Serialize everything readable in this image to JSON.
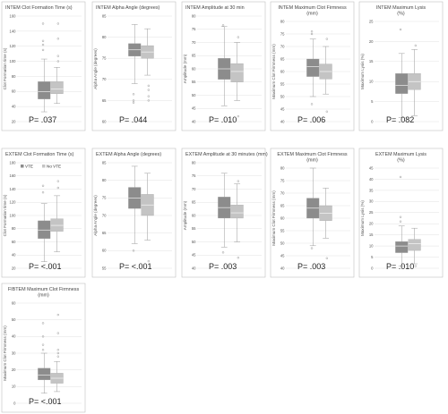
{
  "chart_data": [
    {
      "type": "box",
      "title": "INTEM Clot Formation Time (s)",
      "ylabel": "Clot Formation time (s)",
      "ylim": [
        20,
        160
      ],
      "yticks": [
        20,
        40,
        60,
        80,
        100,
        120,
        140,
        160
      ],
      "p_label": "P= .037",
      "series": [
        {
          "name": "VTE",
          "whisker_low": 33,
          "q1": 50,
          "median": 60,
          "q3": 73,
          "whisker_high": 103,
          "outliers": [
            115,
            122,
            127,
            150
          ]
        },
        {
          "name": "No VTE",
          "whisker_low": 44,
          "q1": 57,
          "median": 63,
          "q3": 73,
          "whisker_high": 92,
          "outliers": [
            100,
            107,
            130,
            150
          ]
        }
      ]
    },
    {
      "type": "box",
      "title": "INTEM Alpha Angle (degrees)",
      "ylabel": "Alpha Angle (degrees)",
      "ylim": [
        60,
        85
      ],
      "yticks": [
        60,
        65,
        70,
        75,
        80,
        85
      ],
      "p_label": "P= .044",
      "series": [
        {
          "name": "VTE",
          "whisker_low": 69,
          "q1": 75.5,
          "median": 77,
          "q3": 78.5,
          "whisker_high": 83,
          "outliers": [
            64.5,
            65,
            66.5
          ]
        },
        {
          "name": "No VTE",
          "whisker_low": 71,
          "q1": 75,
          "median": 76.5,
          "q3": 78,
          "whisker_high": 82,
          "outliers": [
            65,
            66,
            67.5,
            68.5
          ]
        }
      ]
    },
    {
      "type": "box",
      "title": "INTEM Amplitude at 30 min",
      "ylabel": "Amplitude (mm)",
      "ylim": [
        40,
        80
      ],
      "yticks": [
        40,
        45,
        50,
        55,
        60,
        65,
        70,
        75,
        80
      ],
      "p_label": "P= .010",
      "series": [
        {
          "name": "VTE",
          "whisker_low": 46,
          "q1": 56,
          "median": 60,
          "q3": 64,
          "whisker_high": 76,
          "outliers": [
            76.5
          ]
        },
        {
          "name": "No VTE",
          "whisker_low": 48,
          "q1": 55,
          "median": 59,
          "q3": 62,
          "whisker_high": 70,
          "outliers": [
            72,
            42
          ]
        }
      ]
    },
    {
      "type": "box",
      "title": "INTEM Maximum Clot Firmness (mm)",
      "ylabel": "Maximum Clot Firmness (mm)",
      "ylim": [
        40,
        80
      ],
      "yticks": [
        40,
        45,
        50,
        55,
        60,
        65,
        70,
        75,
        80
      ],
      "p_label": "P= .006",
      "series": [
        {
          "name": "VTE",
          "whisker_low": 50,
          "q1": 58,
          "median": 62,
          "q3": 65,
          "whisker_high": 73,
          "outliers": [
            47,
            75,
            76
          ]
        },
        {
          "name": "No VTE",
          "whisker_low": 51,
          "q1": 57,
          "median": 60,
          "q3": 63,
          "whisker_high": 70,
          "outliers": [
            73,
            44
          ]
        }
      ]
    },
    {
      "type": "box",
      "title": "INTEM Maximum Lysis (%)",
      "ylabel": "Maximum Lysis (%)",
      "ylim": [
        0,
        25
      ],
      "yticks": [
        0,
        5,
        10,
        15,
        20,
        25
      ],
      "p_label": "P= .082",
      "series": [
        {
          "name": "VTE",
          "whisker_low": 1,
          "q1": 7,
          "median": 9,
          "q3": 12,
          "whisker_high": 17,
          "outliers": [
            23
          ]
        },
        {
          "name": "No VTE",
          "whisker_low": 1.5,
          "q1": 8,
          "median": 10,
          "q3": 12,
          "whisker_high": 18,
          "outliers": [
            19
          ]
        }
      ]
    },
    {
      "type": "box",
      "title": "EXTEM Clot Formation Time (s)",
      "ylabel": "Clot Formation time (s)",
      "ylim": [
        20,
        180
      ],
      "yticks": [
        20,
        40,
        60,
        80,
        100,
        120,
        140,
        160,
        180
      ],
      "p_label": "P= <.001",
      "legend": [
        "VTE",
        "No VTE"
      ],
      "series": [
        {
          "name": "VTE",
          "whisker_low": 30,
          "q1": 65,
          "median": 78,
          "q3": 92,
          "whisker_high": 118,
          "outliers": [
            135,
            145
          ]
        },
        {
          "name": "No VTE",
          "whisker_low": 45,
          "q1": 76,
          "median": 85,
          "q3": 95,
          "whisker_high": 130,
          "outliers": [
            142,
            152
          ]
        }
      ]
    },
    {
      "type": "box",
      "title": "EXTEM Alpha Angle (degrees)",
      "ylabel": "Alpha Angle (degrees)",
      "ylim": [
        55,
        85
      ],
      "yticks": [
        55,
        60,
        65,
        70,
        75,
        80,
        85
      ],
      "p_label": "P= <.001",
      "series": [
        {
          "name": "VTE",
          "whisker_low": 62,
          "q1": 72,
          "median": 75,
          "q3": 78,
          "whisker_high": 84,
          "outliers": [
            60
          ]
        },
        {
          "name": "No VTE",
          "whisker_low": 63,
          "q1": 70,
          "median": 73,
          "q3": 76,
          "whisker_high": 82,
          "outliers": [
            57
          ]
        }
      ]
    },
    {
      "type": "box",
      "title": "EXTEM Amplitude at 30 minutes (mm)",
      "ylabel": "Amplitude (mm)",
      "ylim": [
        40,
        80
      ],
      "yticks": [
        40,
        45,
        50,
        55,
        60,
        65,
        70,
        75,
        80
      ],
      "p_label": "P= .003",
      "series": [
        {
          "name": "VTE",
          "whisker_low": 48,
          "q1": 59,
          "median": 63,
          "q3": 67,
          "whisker_high": 76,
          "outliers": [
            46
          ]
        },
        {
          "name": "No VTE",
          "whisker_low": 50,
          "q1": 59,
          "median": 61,
          "q3": 64,
          "whisker_high": 72,
          "outliers": [
            73,
            44
          ]
        }
      ]
    },
    {
      "type": "box",
      "title": "EXTEM Maximum Clot Firmness (mm)",
      "ylabel": "Maximum Clot Firmness (mm)",
      "ylim": [
        40,
        80
      ],
      "yticks": [
        40,
        45,
        50,
        55,
        60,
        65,
        70,
        75,
        80
      ],
      "p_label": "P= .003",
      "series": [
        {
          "name": "VTE",
          "whisker_low": 49,
          "q1": 60,
          "median": 64,
          "q3": 68,
          "whisker_high": 80,
          "outliers": [
            48
          ]
        },
        {
          "name": "No VTE",
          "whisker_low": 52,
          "q1": 59,
          "median": 62,
          "q3": 65,
          "whisker_high": 72,
          "outliers": [
            44
          ]
        }
      ]
    },
    {
      "type": "box",
      "title": "EXTEM Maximum Lysis (%)",
      "ylabel": "Maximum Lysis (%)",
      "ylim": [
        0,
        45
      ],
      "yticks": [
        0,
        5,
        10,
        15,
        20,
        25,
        30,
        35,
        40,
        45
      ],
      "p_label": "P= .010",
      "series": [
        {
          "name": "VTE",
          "whisker_low": 1,
          "q1": 7,
          "median": 10,
          "q3": 12,
          "whisker_high": 19,
          "outliers": [
            21,
            23,
            41
          ]
        },
        {
          "name": "No VTE",
          "whisker_low": 2,
          "q1": 8,
          "median": 11,
          "q3": 13,
          "whisker_high": 18,
          "outliers": [
            1
          ]
        }
      ]
    },
    {
      "type": "box",
      "title": "FIBTEM Maximum Clot Firmness (mm)",
      "ylabel": "Maximum Clot Firmness (mm)",
      "ylim": [
        0,
        60
      ],
      "yticks": [
        0,
        10,
        20,
        30,
        40,
        50,
        60
      ],
      "p_label": "P= <.001",
      "series": [
        {
          "name": "VTE",
          "whisker_low": 6,
          "q1": 14,
          "median": 17,
          "q3": 21,
          "whisker_high": 30,
          "outliers": [
            32,
            35,
            40,
            48
          ]
        },
        {
          "name": "No VTE",
          "whisker_low": 7,
          "q1": 12,
          "median": 15,
          "q3": 18,
          "whisker_high": 25,
          "outliers": [
            28,
            30,
            32,
            42,
            53
          ]
        }
      ]
    }
  ],
  "colors": {
    "vte_box": "#8c8c8c",
    "novte_box": "#c4c4c4",
    "whisker": "#9a9a9a",
    "outlier": "#9a9a9a",
    "grid": "#d9d9d9",
    "panel_border": "#bfbfbf",
    "title": "#444444"
  }
}
